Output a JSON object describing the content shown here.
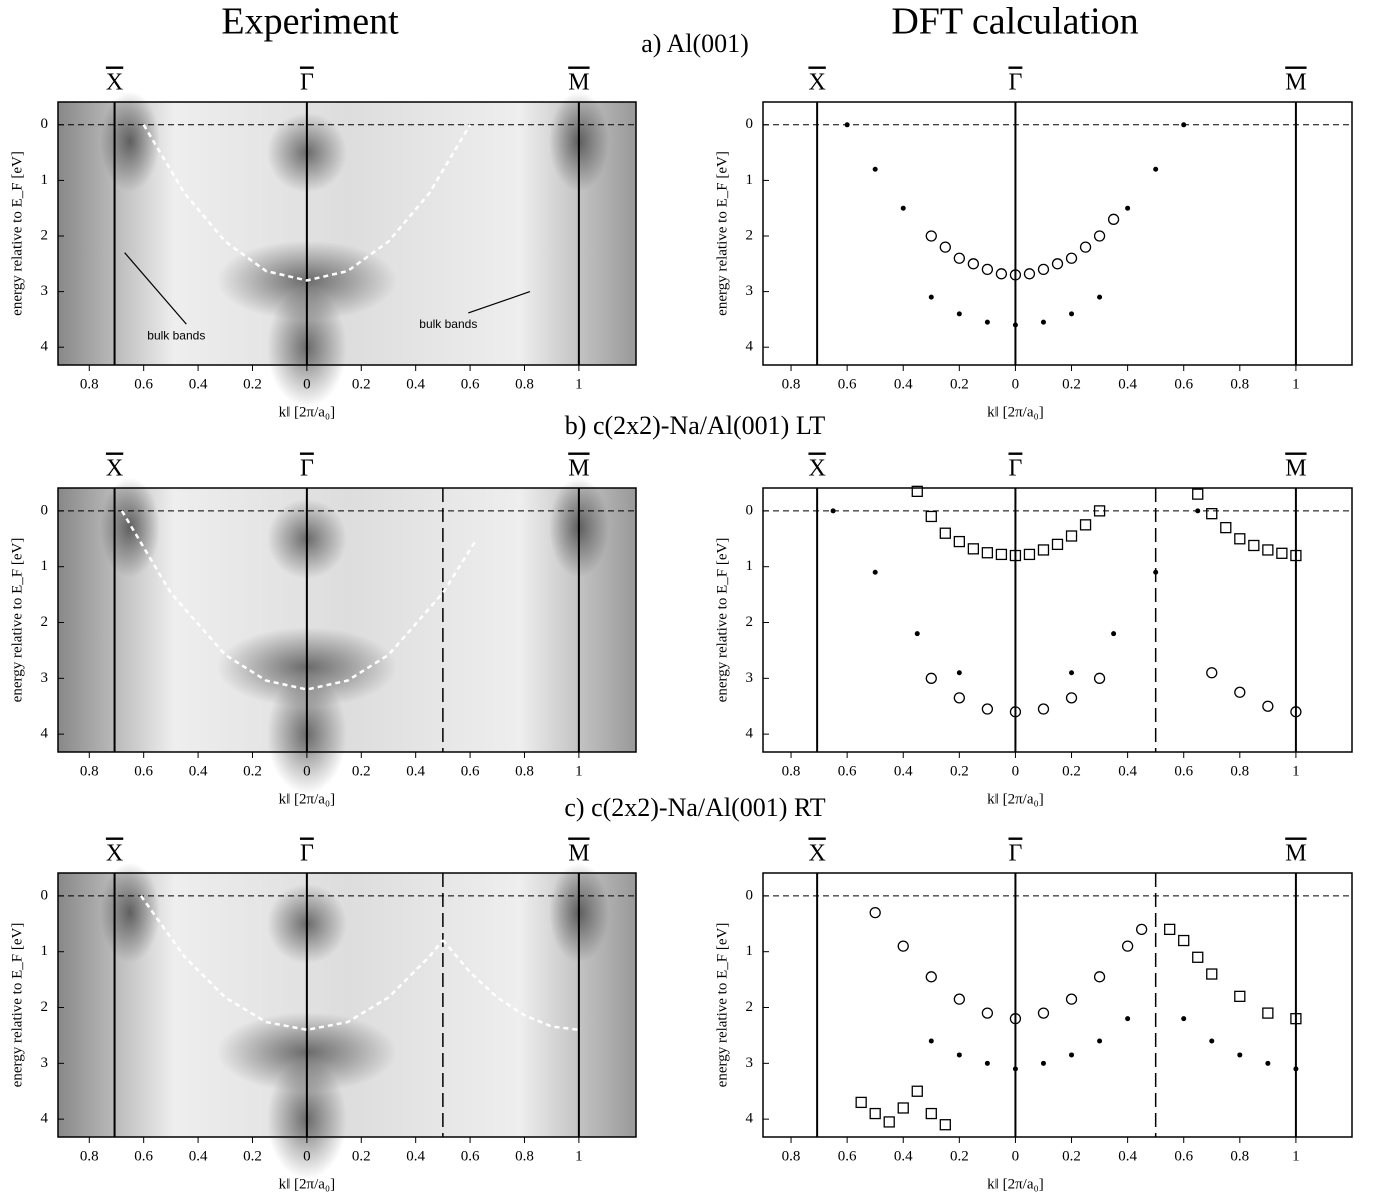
{
  "figure": {
    "headers": [
      "Experiment",
      "DFT calculation"
    ],
    "panel_titles": [
      "a) Al(001)",
      "b) c(2x2)-Na/Al(001) LT",
      "c) c(2x2)-Na/Al(001) RT"
    ]
  },
  "chart_data": [
    {
      "type": "line",
      "xlabel": "k‖ [2π/a₀]",
      "ylabel": "energy relative to E_F [eV]",
      "xlim": [
        -0.915,
        1.21
      ],
      "ylim": [
        4.32,
        -0.41
      ],
      "xticks": [
        {
          "value": -0.8,
          "label": "0.8"
        },
        {
          "value": -0.6,
          "label": "0.6"
        },
        {
          "value": -0.4,
          "label": "0.4"
        },
        {
          "value": -0.2,
          "label": "0.2"
        },
        0,
        {
          "value": 0.2,
          "label": "0.2"
        },
        0.4,
        0.6,
        0.8,
        1
      ],
      "yticks": [
        0,
        1,
        2,
        3,
        4
      ],
      "symmetry_points": [
        {
          "label": "X",
          "value": -0.707
        },
        {
          "label": "Γ",
          "value": 0
        },
        {
          "label": "M",
          "value": 1
        }
      ],
      "dashed_vlines": [],
      "hline": 0,
      "annotations": [
        "bulk bands",
        "bulk bands"
      ],
      "series": [
        {
          "color": "#ffffff",
          "x": [
            -0.6,
            -0.45,
            -0.3,
            -0.15,
            0,
            0.15,
            0.3,
            0.45,
            0.6
          ],
          "values": [
            0,
            1.23,
            2.1,
            2.63,
            2.8,
            2.63,
            2.1,
            1.23,
            0
          ]
        }
      ]
    },
    {
      "type": "scatter",
      "xlabel": "k‖ [2π/a₀]",
      "ylabel": "energy relative to E_F [eV]",
      "xlim": [
        -0.9,
        1.2
      ],
      "ylim": [
        4.32,
        -0.41
      ],
      "xticks": [
        {
          "value": -0.8,
          "label": "0.8"
        },
        {
          "value": -0.6,
          "label": "0.6"
        },
        {
          "value": -0.4,
          "label": "0.4"
        },
        {
          "value": -0.2,
          "label": "0.2"
        },
        0,
        {
          "value": 0.2,
          "label": "0.2"
        },
        0.4,
        0.6,
        0.8,
        1
      ],
      "yticks": [
        0,
        1,
        2,
        3,
        4
      ],
      "symmetry_points": [
        {
          "label": "X",
          "value": -0.707
        },
        {
          "label": "Γ",
          "value": 0
        },
        {
          "label": "M",
          "value": 1
        }
      ],
      "dashed_vlines": [],
      "hline": 0,
      "annotations": [],
      "series": [
        {
          "color": "#000000",
          "marker": "circle",
          "x": [
            -0.3,
            -0.25,
            -0.2,
            -0.15,
            -0.1,
            -0.05,
            0,
            0.05,
            0.1,
            0.15,
            0.2,
            0.25,
            0.3,
            0.35
          ],
          "values": [
            2.0,
            2.2,
            2.4,
            2.5,
            2.6,
            2.68,
            2.7,
            2.68,
            2.6,
            2.5,
            2.4,
            2.2,
            2.0,
            1.7
          ]
        },
        {
          "color": "#000000",
          "marker": "dot",
          "x": [
            -0.6,
            -0.5,
            -0.4,
            0.4,
            0.5,
            0.6
          ],
          "values": [
            0,
            0.8,
            1.5,
            1.5,
            0.8,
            0
          ]
        },
        {
          "color": "#000000",
          "marker": "dot",
          "x": [
            -0.3,
            -0.2,
            -0.1,
            0,
            0.1,
            0.2,
            0.3
          ],
          "values": [
            3.1,
            3.4,
            3.55,
            3.6,
            3.55,
            3.4,
            3.1
          ]
        }
      ]
    },
    {
      "type": "line",
      "xlabel": "k‖ [2π/a₀]",
      "ylabel": "energy relative to E_F [eV]",
      "xlim": [
        -0.915,
        1.21
      ],
      "ylim": [
        4.32,
        -0.41
      ],
      "xticks": [
        {
          "value": -0.8,
          "label": "0.8"
        },
        {
          "value": -0.6,
          "label": "0.6"
        },
        {
          "value": -0.4,
          "label": "0.4"
        },
        {
          "value": -0.2,
          "label": "0.2"
        },
        0,
        {
          "value": 0.2,
          "label": "0.2"
        },
        0.4,
        0.6,
        0.8,
        1
      ],
      "yticks": [
        0,
        1,
        2,
        3,
        4
      ],
      "symmetry_points": [
        {
          "label": "X",
          "value": -0.707
        },
        {
          "label": "Γ",
          "value": 0
        },
        {
          "label": "M",
          "value": 1
        }
      ],
      "dashed_vlines": [
        0.5
      ],
      "hline": 0,
      "annotations": [],
      "series": [
        {
          "color": "#ffffff",
          "x": [
            -0.68,
            -0.5,
            -0.3,
            -0.15,
            0,
            0.15,
            0.3,
            0.5,
            0.62
          ],
          "values": [
            0,
            1.47,
            2.58,
            3.04,
            3.2,
            3.04,
            2.58,
            1.47,
            0.54
          ]
        }
      ]
    },
    {
      "type": "scatter",
      "xlabel": "k‖ [2π/a₀]",
      "ylabel": "energy relative to E_F [eV]",
      "xlim": [
        -0.9,
        1.2
      ],
      "ylim": [
        4.32,
        -0.41
      ],
      "xticks": [
        {
          "value": -0.8,
          "label": "0.8"
        },
        {
          "value": -0.6,
          "label": "0.6"
        },
        {
          "value": -0.4,
          "label": "0.4"
        },
        {
          "value": -0.2,
          "label": "0.2"
        },
        0,
        {
          "value": 0.2,
          "label": "0.2"
        },
        0.4,
        0.6,
        0.8,
        1
      ],
      "yticks": [
        0,
        1,
        2,
        3,
        4
      ],
      "symmetry_points": [
        {
          "label": "X",
          "value": -0.707
        },
        {
          "label": "Γ",
          "value": 0
        },
        {
          "label": "M",
          "value": 1
        }
      ],
      "dashed_vlines": [
        0.5
      ],
      "hline": 0,
      "annotations": [],
      "series": [
        {
          "color": "#000000",
          "marker": "square",
          "x": [
            -0.35,
            -0.3,
            -0.25,
            -0.2,
            -0.15,
            -0.1,
            -0.05,
            0,
            0.05,
            0.1,
            0.15,
            0.2,
            0.25,
            0.3
          ],
          "values": [
            -0.35,
            0.1,
            0.4,
            0.55,
            0.68,
            0.75,
            0.78,
            0.8,
            0.78,
            0.7,
            0.6,
            0.45,
            0.25,
            0
          ],
          "note_marker": null
        },
        {
          "color": "#000000",
          "marker": "circle",
          "x": [
            -0.3,
            -0.2,
            -0.1,
            0,
            0.1,
            0.2,
            0.3,
            0.7,
            0.8,
            0.9,
            1
          ],
          "values": [
            3.0,
            3.35,
            3.55,
            3.6,
            3.55,
            3.35,
            3.0,
            2.9,
            3.25,
            3.5,
            3.6
          ]
        },
        {
          "color": "#000000",
          "marker": "square",
          "x": [
            0.65,
            0.7,
            0.75,
            0.8,
            0.85,
            0.9,
            0.95,
            1
          ],
          "values": [
            -0.3,
            0.05,
            0.3,
            0.5,
            0.62,
            0.7,
            0.76,
            0.8
          ]
        },
        {
          "color": "#000000",
          "marker": "dot",
          "x": [
            -0.65,
            -0.5,
            -0.35,
            -0.2,
            0.2,
            0.35,
            0.5,
            0.65
          ],
          "values": [
            0,
            1.1,
            2.2,
            2.9,
            2.9,
            2.2,
            1.1,
            0
          ]
        }
      ]
    },
    {
      "type": "line",
      "xlabel": "k‖ [2π/a₀]",
      "ylabel": "energy relative to E_F [eV]",
      "xlim": [
        -0.915,
        1.21
      ],
      "ylim": [
        4.32,
        -0.41
      ],
      "xticks": [
        {
          "value": -0.8,
          "label": "0.8"
        },
        {
          "value": -0.6,
          "label": "0.6"
        },
        {
          "value": -0.4,
          "label": "0.4"
        },
        {
          "value": -0.2,
          "label": "0.2"
        },
        0,
        {
          "value": 0.2,
          "label": "0.2"
        },
        0.4,
        0.6,
        0.8,
        1
      ],
      "yticks": [
        0,
        1,
        2,
        3,
        4
      ],
      "symmetry_points": [
        {
          "label": "X",
          "value": -0.707
        },
        {
          "label": "Γ",
          "value": 0
        },
        {
          "label": "M",
          "value": 1
        }
      ],
      "dashed_vlines": [
        0.5
      ],
      "hline": 0,
      "annotations": [],
      "series": [
        {
          "color": "#ffffff",
          "x": [
            -0.61,
            -0.45,
            -0.3,
            -0.15,
            0,
            0.15,
            0.3,
            0.45,
            0.5
          ],
          "values": [
            0,
            1.09,
            1.82,
            2.26,
            2.4,
            2.26,
            1.82,
            1.09,
            0.79
          ]
        },
        {
          "color": "#ffffff",
          "x": [
            0.5,
            0.6,
            0.7,
            0.8,
            0.9,
            1
          ],
          "values": [
            0.79,
            1.37,
            1.82,
            2.14,
            2.34,
            2.4
          ]
        }
      ]
    },
    {
      "type": "scatter",
      "xlabel": "k‖ [2π/a₀]",
      "ylabel": "energy relative to E_F [eV]",
      "xlim": [
        -0.9,
        1.2
      ],
      "ylim": [
        4.32,
        -0.41
      ],
      "xticks": [
        {
          "value": -0.8,
          "label": "0.8"
        },
        {
          "value": -0.6,
          "label": "0.6"
        },
        {
          "value": -0.4,
          "label": "0.4"
        },
        {
          "value": -0.2,
          "label": "0.2"
        },
        0,
        {
          "value": 0.2,
          "label": "0.2"
        },
        0.4,
        0.6,
        0.8,
        1
      ],
      "yticks": [
        0,
        1,
        2,
        3,
        4
      ],
      "symmetry_points": [
        {
          "label": "X",
          "value": -0.707
        },
        {
          "label": "Γ",
          "value": 0
        },
        {
          "label": "M",
          "value": 1
        }
      ],
      "dashed_vlines": [
        0.5
      ],
      "hline": 0,
      "annotations": [],
      "series": [
        {
          "color": "#000000",
          "marker": "circle",
          "x": [
            -0.5,
            -0.4,
            -0.3,
            -0.2,
            -0.1,
            0,
            0.1,
            0.2,
            0.3,
            0.4,
            0.45
          ],
          "values": [
            0.3,
            0.9,
            1.45,
            1.85,
            2.1,
            2.2,
            2.1,
            1.85,
            1.45,
            0.9,
            0.6
          ]
        },
        {
          "color": "#000000",
          "marker": "square",
          "x": [
            0.55,
            0.6,
            0.65,
            0.7,
            0.8,
            0.9,
            1
          ],
          "values": [
            0.6,
            0.8,
            1.1,
            1.4,
            1.8,
            2.1,
            2.2
          ]
        },
        {
          "color": "#000000",
          "marker": "dot",
          "x": [
            -0.3,
            -0.2,
            -0.1,
            0,
            0.1,
            0.2,
            0.3,
            0.4,
            0.6,
            0.7,
            0.8,
            0.9,
            1
          ],
          "values": [
            2.6,
            2.85,
            3.0,
            3.1,
            3.0,
            2.85,
            2.6,
            2.2,
            2.2,
            2.6,
            2.85,
            3.0,
            3.1
          ]
        },
        {
          "color": "#000000",
          "marker": "square",
          "x": [
            -0.55,
            -0.5,
            -0.45,
            -0.4,
            -0.35,
            -0.3,
            -0.25
          ],
          "values": [
            3.7,
            3.9,
            4.05,
            3.8,
            3.5,
            3.9,
            4.1
          ]
        }
      ]
    }
  ]
}
